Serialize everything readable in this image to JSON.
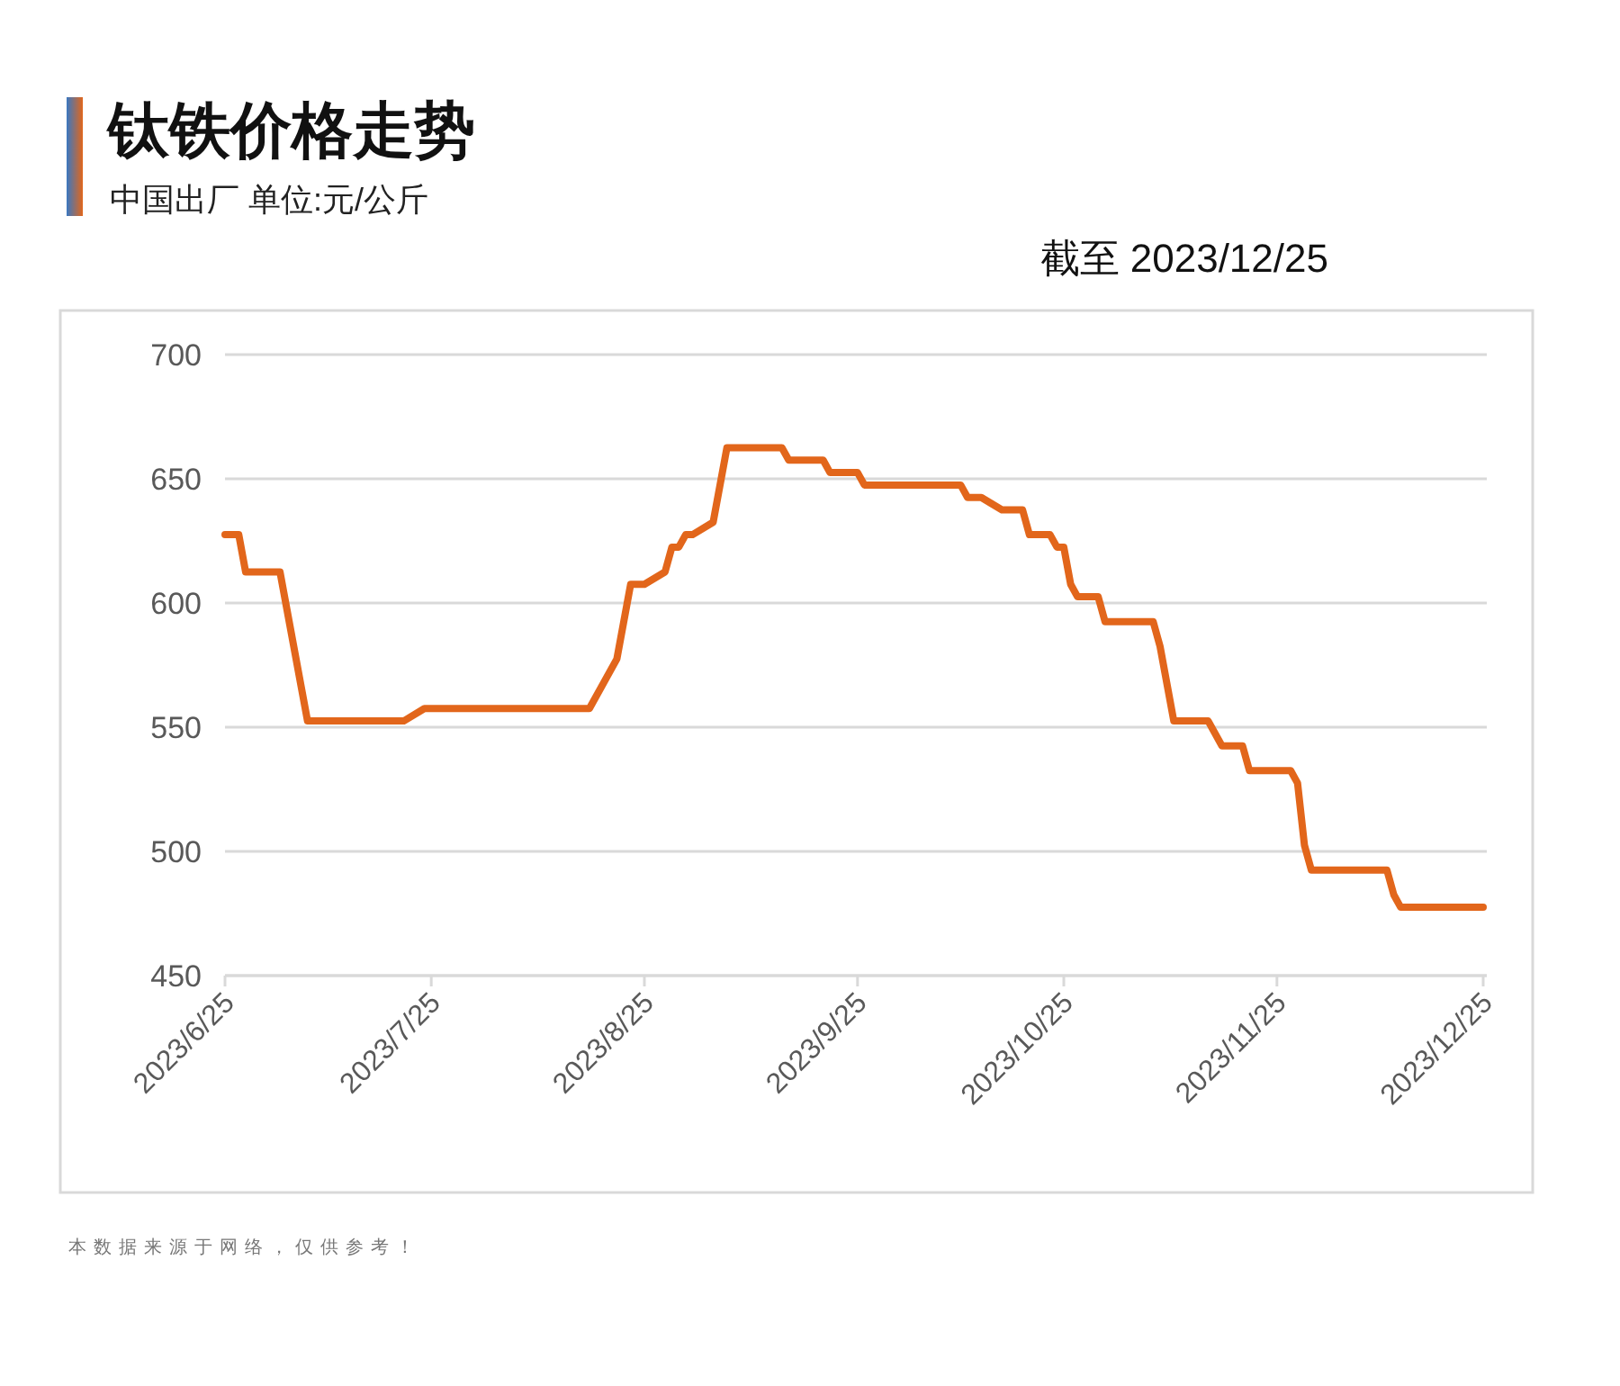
{
  "chart_data": {
    "type": "line",
    "title": "钛铁价格走势",
    "subtitle": "中国出厂 单位:元/公斤",
    "annotations": [
      "截至 2023/12/25",
      "本数据来源于网络，仅供参考！"
    ],
    "x": [
      "2023-06-25",
      "2023-06-27",
      "2023-06-28",
      "2023-07-03",
      "2023-07-07",
      "2023-07-21",
      "2023-07-24",
      "2023-08-17",
      "2023-08-21",
      "2023-08-23",
      "2023-08-25",
      "2023-08-28",
      "2023-08-29",
      "2023-08-30",
      "2023-08-31",
      "2023-09-01",
      "2023-09-04",
      "2023-09-06",
      "2023-09-14",
      "2023-09-15",
      "2023-09-20",
      "2023-09-21",
      "2023-09-25",
      "2023-09-26",
      "2023-10-10",
      "2023-10-11",
      "2023-10-13",
      "2023-10-16",
      "2023-10-19",
      "2023-10-20",
      "2023-10-23",
      "2023-10-24",
      "2023-10-25",
      "2023-10-26",
      "2023-10-27",
      "2023-10-30",
      "2023-10-31",
      "2023-11-07",
      "2023-11-08",
      "2023-11-10",
      "2023-11-15",
      "2023-11-17",
      "2023-11-20",
      "2023-11-21",
      "2023-11-27",
      "2023-11-28",
      "2023-11-29",
      "2023-11-30",
      "2023-12-11",
      "2023-12-12",
      "2023-12-13",
      "2023-12-25"
    ],
    "values": [
      627.5,
      627.5,
      612.5,
      612.5,
      552.5,
      552.5,
      557.5,
      557.5,
      577.5,
      607.5,
      607.5,
      612.5,
      622.5,
      622.5,
      627.5,
      627.5,
      632.5,
      662.5,
      662.5,
      657.5,
      657.5,
      652.5,
      652.5,
      647.5,
      647.5,
      642.5,
      642.5,
      637.5,
      637.5,
      627.5,
      627.5,
      622.5,
      622.5,
      607.5,
      602.5,
      602.5,
      592.5,
      592.5,
      582.5,
      552.5,
      552.5,
      542.5,
      542.5,
      532.5,
      532.5,
      527.5,
      502.5,
      492.5,
      492.5,
      482.5,
      477.5,
      477.5
    ],
    "color": "#e2661b",
    "xlim": [
      "2023-06-25",
      "2023-12-25"
    ],
    "xticks": [
      {
        "value": "2023-06-25",
        "label": "2023/6/25"
      },
      {
        "value": "2023-07-25",
        "label": "2023/7/25"
      },
      {
        "value": "2023-08-25",
        "label": "2023/8/25"
      },
      {
        "value": "2023-09-25",
        "label": "2023/9/25"
      },
      {
        "value": "2023-10-25",
        "label": "2023/10/25"
      },
      {
        "value": "2023-11-25",
        "label": "2023/11/25"
      },
      {
        "value": "2023-12-25",
        "label": "2023/12/25"
      }
    ],
    "ylim": [
      450,
      700
    ],
    "yticks": [
      450,
      500,
      550,
      600,
      650,
      700
    ],
    "grid": "y"
  }
}
